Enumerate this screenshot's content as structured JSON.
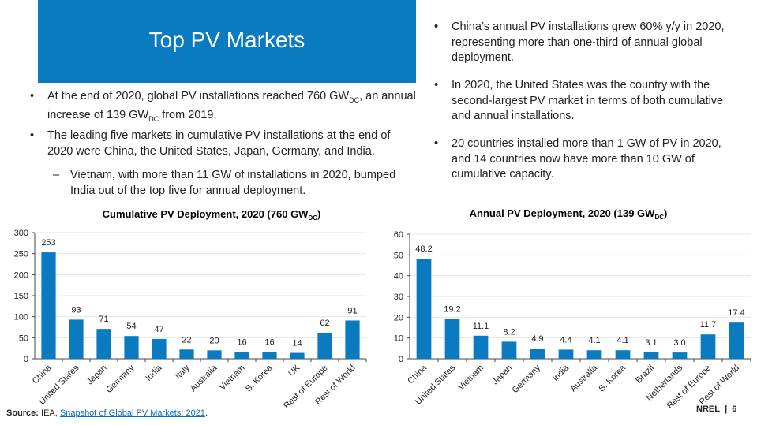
{
  "title": "Top PV Markets",
  "left_bullets": [
    {
      "pre": "At the end of 2020, global PV installations reached 760 GW",
      "sub": "DC",
      "post": ", an annual increase of 139 GW",
      "sub2": "DC",
      "post2": " from 2019."
    },
    {
      "text": "The leading five markets in cumulative PV installations at the end of 2020 were China, the United States, Japan, Germany, and India."
    },
    {
      "text": "Vietnam, with more than 11 GW of installations in 2020, bumped India out of the top five for annual deployment."
    }
  ],
  "right_bullets": [
    "China’s annual PV installations grew 60% y/y in 2020, representing more than one-third of annual global deployment.",
    "In 2020, the United States was the country with the second-largest PV market in terms of both cumulative and annual installations.",
    "20 countries installed more than 1 GW of PV in 2020, and 14 countries now have more than 10 GW of cumulative capacity."
  ],
  "chart_data": [
    {
      "type": "bar",
      "title": "Cumulative PV Deployment, 2020 (760 GW",
      "title_sub": "DC",
      "title_end": ")",
      "categories": [
        "China",
        "United States",
        "Japan",
        "Germany",
        "India",
        "Italy",
        "Australia",
        "Vietnam",
        "S. Korea",
        "UK",
        "Rest of Europe",
        "Rest of World"
      ],
      "values": [
        253,
        93,
        71,
        54,
        47,
        22,
        20,
        16,
        16,
        14,
        62,
        91
      ],
      "labels": [
        "253",
        "93",
        "71",
        "54",
        "47",
        "22",
        "20",
        "16",
        "16",
        "14",
        "62",
        "91"
      ],
      "yticks": [
        0,
        50,
        100,
        150,
        200,
        250,
        300
      ],
      "ylim": [
        0,
        300
      ],
      "grid": true,
      "color": "#0a7bc1"
    },
    {
      "type": "bar",
      "title": "Annual PV Deployment, 2020 (139 GW",
      "title_sub": "DC",
      "title_end": ")",
      "categories": [
        "China",
        "United States",
        "Vietnam",
        "Japan",
        "Germany",
        "India",
        "Australia",
        "S. Korea",
        "Brazil",
        "Netherlands",
        "Rest of Europe",
        "Rest of World"
      ],
      "values": [
        48.2,
        19.2,
        11.1,
        8.2,
        4.9,
        4.4,
        4.1,
        4.1,
        3.1,
        3.0,
        11.7,
        17.4
      ],
      "labels": [
        "48.2",
        "19.2",
        "11.1",
        "8.2",
        "4.9",
        "4.4",
        "4.1",
        "4.1",
        "3.1",
        "3.0",
        "11.7",
        "17.4"
      ],
      "yticks": [
        0,
        10,
        20,
        30,
        40,
        50,
        60
      ],
      "ylim": [
        0,
        60
      ],
      "grid": true,
      "color": "#0a7bc1"
    }
  ],
  "source": {
    "label": "Source:",
    "text": " IEA, ",
    "link": "Snapshot of Global PV Markets: 2021",
    "end": "."
  },
  "footer": {
    "org": "NREL",
    "sep": "|",
    "page": "6"
  }
}
